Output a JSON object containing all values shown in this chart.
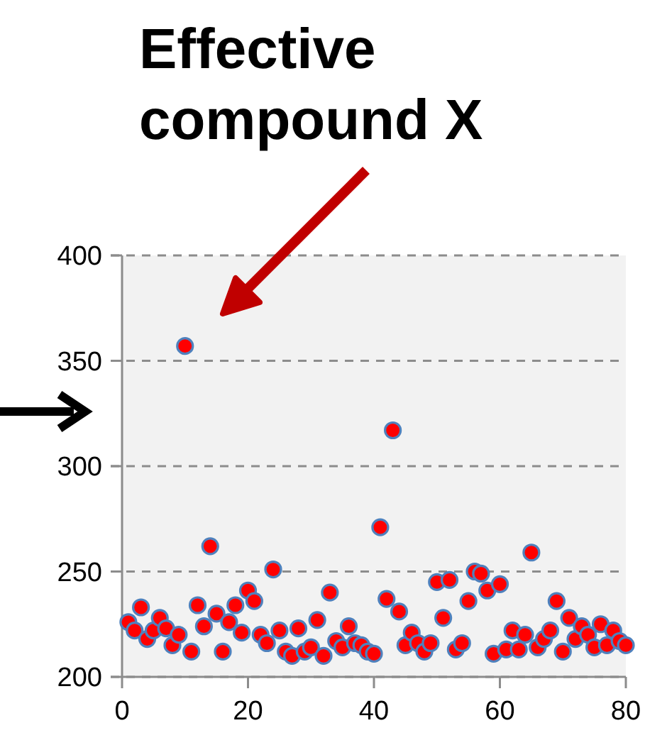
{
  "chart_data": {
    "type": "scatter",
    "annotations": [
      "Effective compound X"
    ],
    "x": [
      1,
      2,
      3,
      4,
      5,
      6,
      7,
      8,
      9,
      10,
      11,
      12,
      13,
      14,
      15,
      16,
      17,
      18,
      19,
      20,
      21,
      22,
      23,
      24,
      25,
      26,
      27,
      28,
      29,
      30,
      31,
      32,
      33,
      34,
      35,
      36,
      37,
      38,
      39,
      40,
      41,
      42,
      43,
      44,
      45,
      46,
      47,
      48,
      49,
      50,
      51,
      52,
      53,
      54,
      55,
      56,
      57,
      58,
      59,
      60,
      61,
      62,
      63,
      64,
      65,
      66,
      67,
      68,
      69,
      70,
      71,
      72,
      73,
      74,
      75,
      76,
      77,
      78,
      79,
      80
    ],
    "series": [
      {
        "color": "#ff0000",
        "values": [
          226,
          222,
          233,
          218,
          222,
          228,
          223,
          215,
          220,
          357,
          212,
          234,
          224,
          262,
          230,
          212,
          226,
          234,
          221,
          241,
          236,
          220,
          216,
          251,
          222,
          212,
          210,
          223,
          212,
          214,
          227,
          210,
          240,
          217,
          214,
          224,
          216,
          215,
          212,
          211,
          271,
          237,
          317,
          231,
          215,
          221,
          216,
          212,
          216,
          245,
          228,
          246,
          213,
          216,
          236,
          250,
          249,
          241,
          211,
          244,
          213,
          222,
          213,
          220,
          259,
          214,
          218,
          222,
          236,
          212,
          228,
          218,
          224,
          220,
          214,
          225,
          215,
          222,
          217,
          215
        ]
      }
    ],
    "xlim": [
      0,
      80
    ],
    "xticks": [
      0,
      20,
      40,
      60,
      80
    ],
    "ylim": [
      200,
      400
    ],
    "yticks": [
      200,
      250,
      300,
      350,
      400
    ],
    "grid": "y",
    "marker": "circle"
  }
}
